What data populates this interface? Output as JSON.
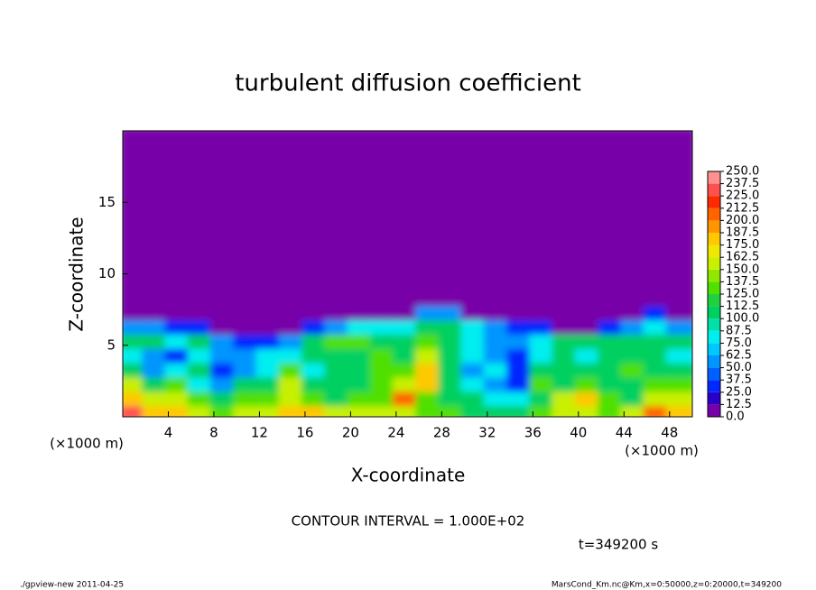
{
  "chart_data": {
    "type": "heatmap",
    "title": "turbulent diffusion coefficient",
    "x_label": "X-coordinate",
    "y_label": "Z-coordinate",
    "x_unit": "(×1000 m)",
    "y_unit": "(×1000 m)",
    "contour_note": "CONTOUR INTERVAL = 1.000E+02",
    "time_note": "t=349200 s",
    "footer_left": "./gpview-new  2011-04-25",
    "footer_right": "MarsCond_Km.nc@Km,x=0:50000,z=0:20000,t=349200",
    "xlim": [
      0,
      50
    ],
    "xticks": [
      4,
      8,
      12,
      16,
      20,
      24,
      28,
      32,
      36,
      40,
      44,
      48
    ],
    "ylim": [
      0,
      20
    ],
    "yticks": [
      5,
      10,
      15
    ],
    "x": [
      1,
      3,
      5,
      7,
      9,
      11,
      13,
      15,
      17,
      19,
      21,
      23,
      25,
      27,
      29,
      31,
      33,
      35,
      37,
      39,
      41,
      43,
      45,
      47,
      49
    ],
    "y_edges": [
      0,
      1,
      2,
      3,
      4,
      5,
      6,
      7,
      8,
      20
    ],
    "z": [
      [
        225,
        187,
        175,
        150,
        137,
        150,
        150,
        187,
        175,
        150,
        162,
        150,
        150,
        125,
        125,
        112,
        100,
        100,
        125,
        150,
        162,
        137,
        150,
        200,
        187
      ],
      [
        175,
        150,
        162,
        125,
        100,
        137,
        125,
        162,
        137,
        100,
        125,
        137,
        200,
        137,
        112,
        100,
        87,
        75,
        112,
        150,
        175,
        125,
        112,
        150,
        162
      ],
      [
        150,
        112,
        137,
        87,
        62,
        100,
        112,
        150,
        112,
        100,
        112,
        125,
        162,
        187,
        100,
        75,
        50,
        37,
        125,
        112,
        125,
        112,
        100,
        125,
        137
      ],
      [
        112,
        50,
        75,
        100,
        37,
        50,
        75,
        137,
        87,
        100,
        112,
        137,
        125,
        175,
        100,
        62,
        75,
        25,
        100,
        112,
        100,
        100,
        125,
        112,
        100
      ],
      [
        87,
        62,
        37,
        87,
        50,
        62,
        75,
        87,
        112,
        100,
        100,
        125,
        100,
        150,
        100,
        75,
        62,
        37,
        87,
        112,
        87,
        100,
        112,
        100,
        87
      ],
      [
        100,
        112,
        75,
        100,
        50,
        25,
        37,
        62,
        100,
        125,
        137,
        112,
        100,
        125,
        112,
        75,
        50,
        62,
        75,
        100,
        100,
        112,
        100,
        112,
        100
      ],
      [
        62,
        50,
        37,
        25,
        12,
        0,
        0,
        12,
        37,
        62,
        75,
        87,
        87,
        100,
        100,
        75,
        50,
        37,
        25,
        0,
        12,
        37,
        62,
        75,
        62
      ],
      [
        0,
        0,
        0,
        0,
        0,
        0,
        0,
        0,
        0,
        0,
        0,
        0,
        0,
        50,
        50,
        0,
        0,
        0,
        0,
        0,
        0,
        0,
        0,
        25,
        0
      ],
      [
        0,
        0,
        0,
        0,
        0,
        0,
        0,
        0,
        0,
        0,
        0,
        0,
        0,
        0,
        0,
        0,
        0,
        0,
        0,
        0,
        0,
        0,
        0,
        0,
        0
      ]
    ],
    "colorbar": {
      "ticks": [
        {
          "value": 0,
          "label": "0.0"
        },
        {
          "value": 12.5,
          "label": "12.5"
        },
        {
          "value": 25,
          "label": "25.0"
        },
        {
          "value": 37.5,
          "label": "37.5"
        },
        {
          "value": 50,
          "label": "50.0"
        },
        {
          "value": 62.5,
          "label": "62.5"
        },
        {
          "value": 75,
          "label": "75.0"
        },
        {
          "value": 87.5,
          "label": "87.5"
        },
        {
          "value": 100,
          "label": "100.0"
        },
        {
          "value": 112.5,
          "label": "112.5"
        },
        {
          "value": 125,
          "label": "125.0"
        },
        {
          "value": 137.5,
          "label": "137.5"
        },
        {
          "value": 150,
          "label": "150.0"
        },
        {
          "value": 162.5,
          "label": "162.5"
        },
        {
          "value": 175,
          "label": "175.0"
        },
        {
          "value": 187.5,
          "label": "187.5"
        },
        {
          "value": 200,
          "label": "200.0"
        },
        {
          "value": 212.5,
          "label": "212.5"
        },
        {
          "value": 225,
          "label": "225.0"
        },
        {
          "value": 237.5,
          "label": "237.5"
        },
        {
          "value": 250,
          "label": "250.0"
        }
      ],
      "colors": [
        "#7800a8",
        "#2a00c8",
        "#0028ff",
        "#0060ff",
        "#0095ff",
        "#00c8ff",
        "#00eef0",
        "#00e0a8",
        "#00d060",
        "#20d040",
        "#50e000",
        "#90e800",
        "#c8f000",
        "#f0e800",
        "#ffc800",
        "#ff9600",
        "#ff6400",
        "#ff2a00",
        "#ff5050",
        "#ff9090"
      ]
    }
  }
}
